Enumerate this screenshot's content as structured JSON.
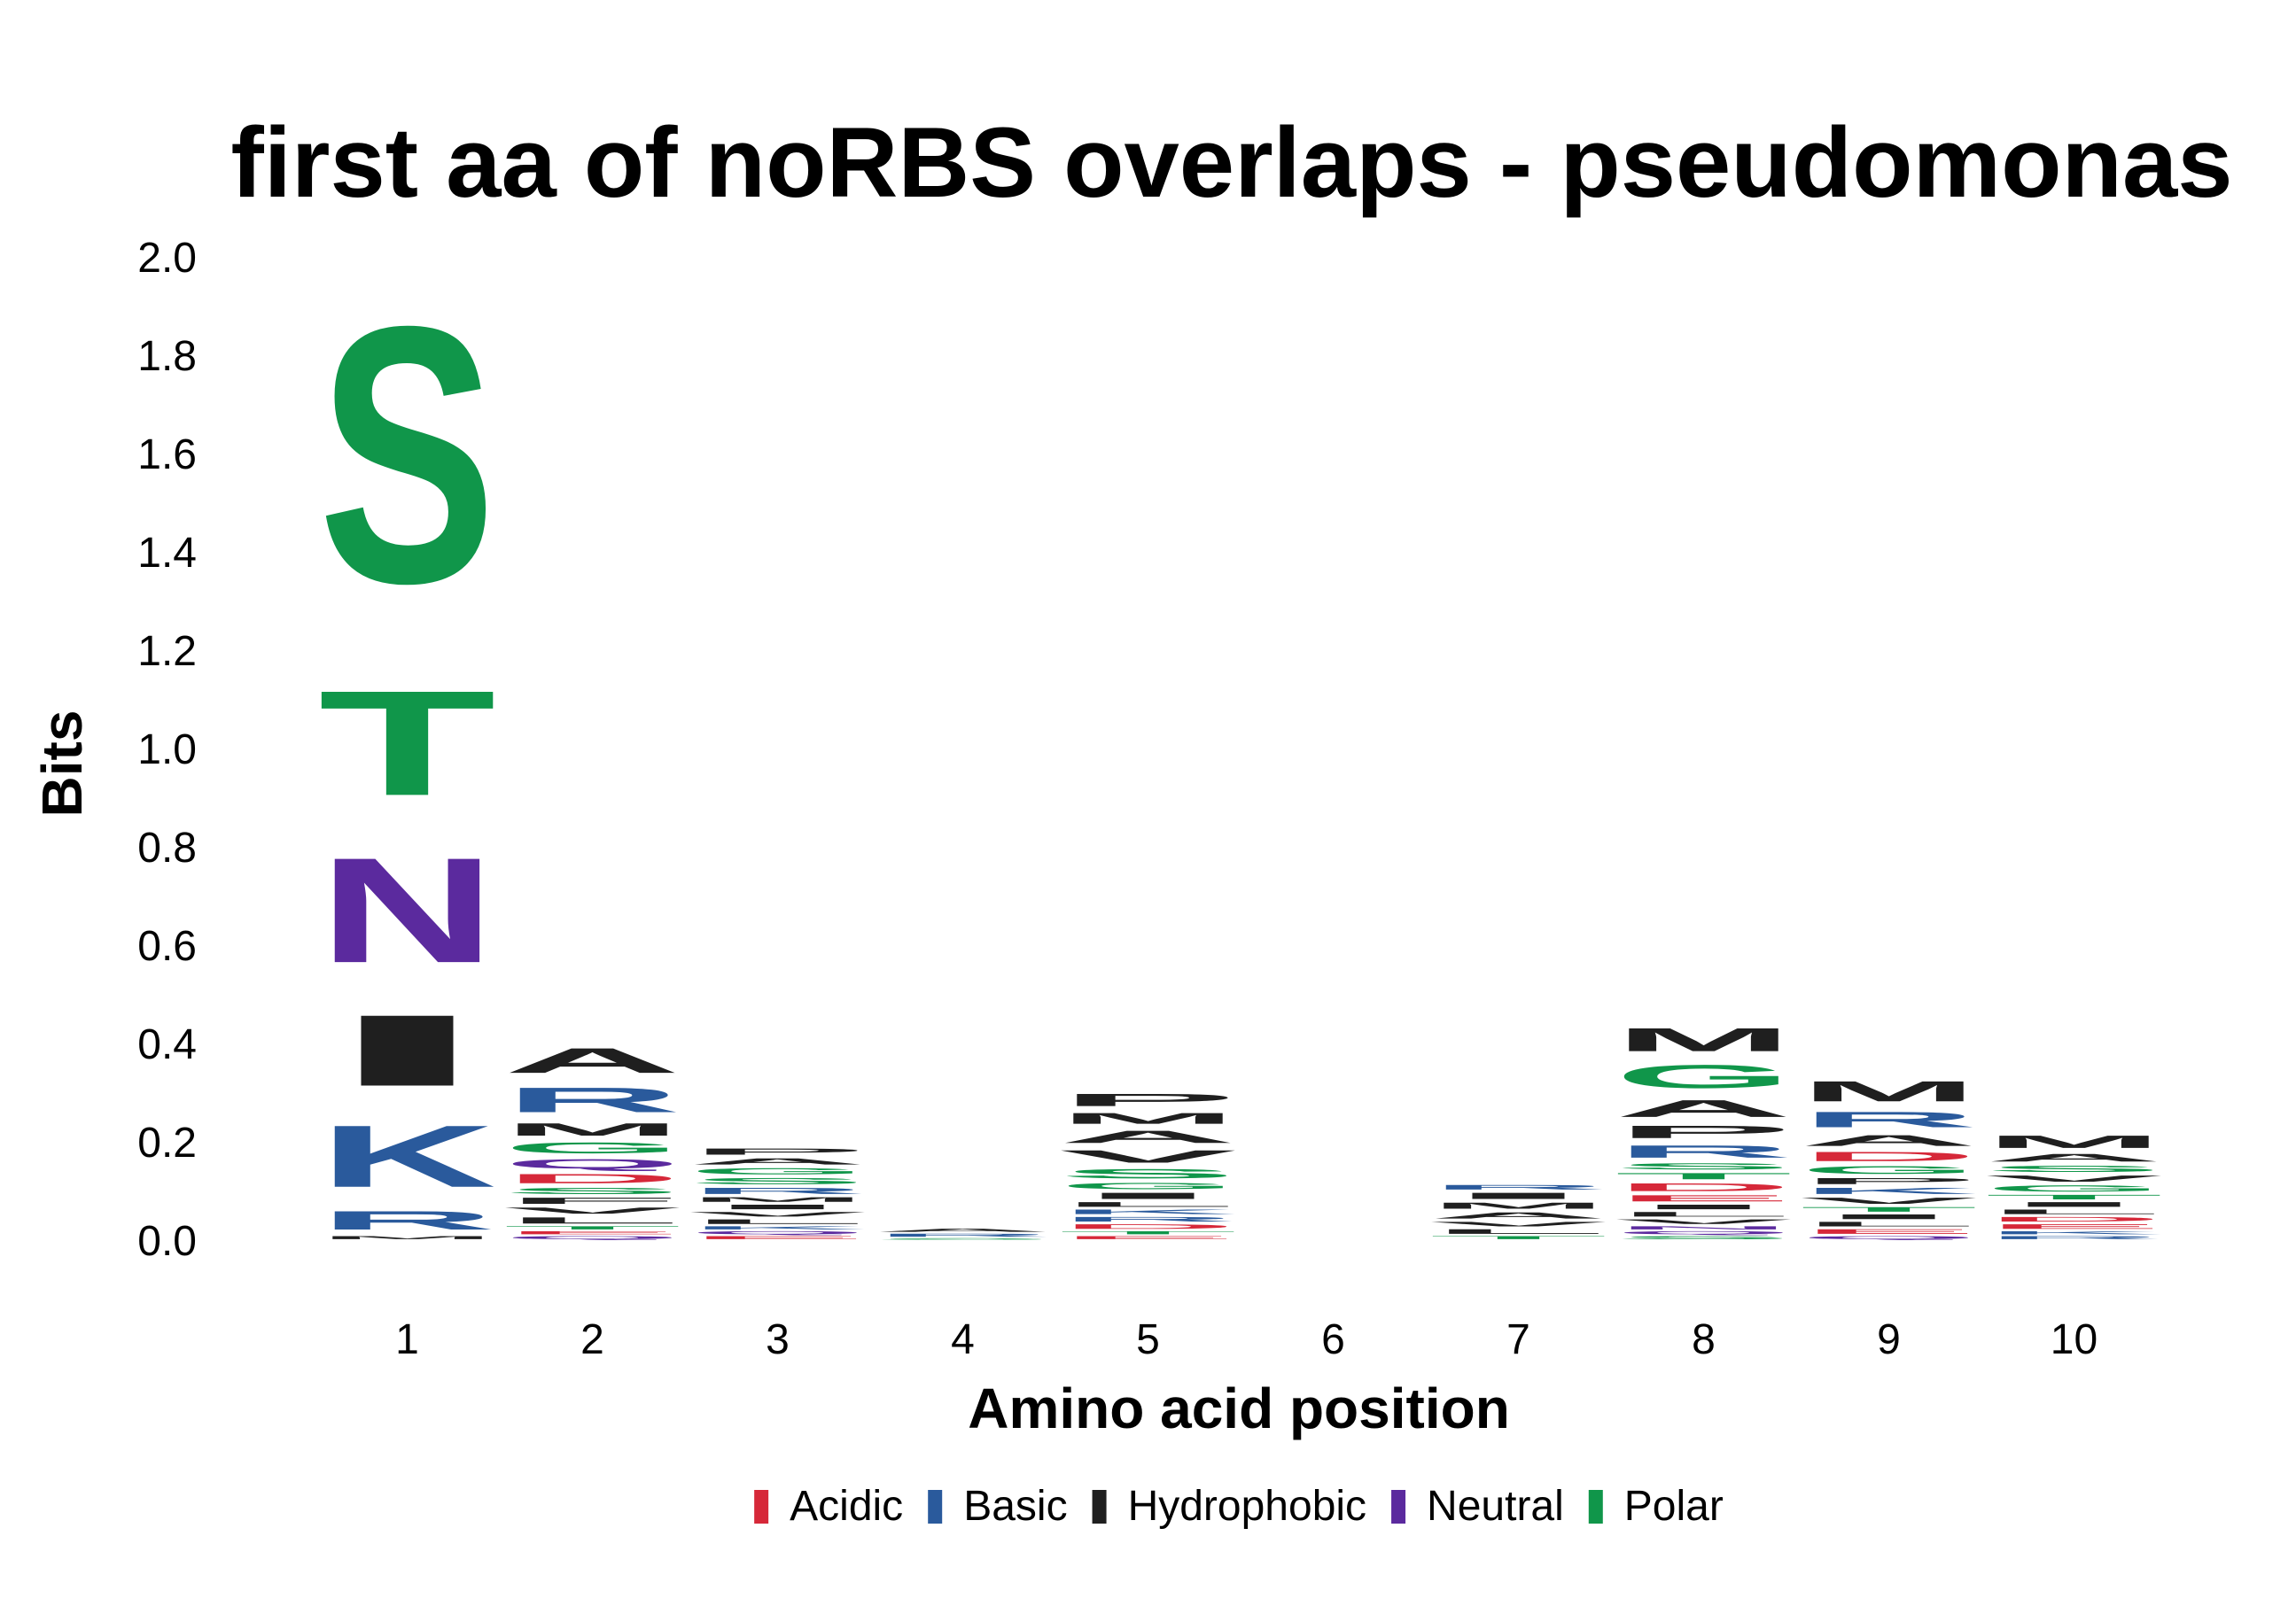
{
  "chart_data": {
    "type": "sequence-logo",
    "title": "first aa of noRBS overlaps - pseudomonas",
    "xlabel": "Amino acid position",
    "ylabel": "Bits",
    "ylim": [
      0,
      2.0
    ],
    "yticks": [
      "0.0",
      "0.2",
      "0.4",
      "0.6",
      "0.8",
      "1.0",
      "1.2",
      "1.4",
      "1.6",
      "1.8",
      "2.0"
    ],
    "xticks": [
      "1",
      "2",
      "3",
      "4",
      "5",
      "6",
      "7",
      "8",
      "9",
      "10"
    ],
    "colors": {
      "Acidic": "#d62839",
      "Basic": "#2a5a9c",
      "Hydrophobic": "#1f1f1f",
      "Neutral": "#5b2a9e",
      "Polar": "#10964a"
    },
    "legend": [
      {
        "label": "Acidic",
        "group": "Acidic"
      },
      {
        "label": "Basic",
        "group": "Basic"
      },
      {
        "label": "Hydrophobic",
        "group": "Hydrophobic"
      },
      {
        "label": "Neutral",
        "group": "Neutral"
      },
      {
        "label": "Polar",
        "group": "Polar"
      }
    ],
    "positions": [
      {
        "pos": "1",
        "letters": [
          {
            "aa": "M",
            "group": "Hydrophobic",
            "bits": 0.01
          },
          {
            "aa": "R",
            "group": "Basic",
            "bits": 0.06
          },
          {
            "aa": "K",
            "group": "Basic",
            "bits": 0.2
          },
          {
            "aa": "I",
            "group": "Hydrophobic",
            "bits": 0.23
          },
          {
            "aa": "N",
            "group": "Neutral",
            "bits": 0.34
          },
          {
            "aa": "T",
            "group": "Polar",
            "bits": 0.34
          },
          {
            "aa": "S",
            "group": "Polar",
            "bits": 0.83
          }
        ]
      },
      {
        "pos": "2",
        "letters": [
          {
            "aa": "Q",
            "group": "Neutral",
            "bits": 0.01
          },
          {
            "aa": "E",
            "group": "Acidic",
            "bits": 0.01
          },
          {
            "aa": "T",
            "group": "Polar",
            "bits": 0.01
          },
          {
            "aa": "L",
            "group": "Hydrophobic",
            "bits": 0.02
          },
          {
            "aa": "V",
            "group": "Hydrophobic",
            "bits": 0.02
          },
          {
            "aa": "F",
            "group": "Hydrophobic",
            "bits": 0.02
          },
          {
            "aa": "S",
            "group": "Polar",
            "bits": 0.02
          },
          {
            "aa": "D",
            "group": "Acidic",
            "bits": 0.03
          },
          {
            "aa": "Q",
            "group": "Neutral",
            "bits": 0.03
          },
          {
            "aa": "G",
            "group": "Polar",
            "bits": 0.035
          },
          {
            "aa": "M",
            "group": "Hydrophobic",
            "bits": 0.04
          },
          {
            "aa": "R",
            "group": "Basic",
            "bits": 0.08
          },
          {
            "aa": "A",
            "group": "Hydrophobic",
            "bits": 0.08
          }
        ]
      },
      {
        "pos": "3",
        "letters": [
          {
            "aa": "E",
            "group": "Acidic",
            "bits": 0.01
          },
          {
            "aa": "Q",
            "group": "Neutral",
            "bits": 0.01
          },
          {
            "aa": "K",
            "group": "Basic",
            "bits": 0.01
          },
          {
            "aa": "L",
            "group": "Hydrophobic",
            "bits": 0.015
          },
          {
            "aa": "V",
            "group": "Hydrophobic",
            "bits": 0.015
          },
          {
            "aa": "I",
            "group": "Hydrophobic",
            "bits": 0.015
          },
          {
            "aa": "M",
            "group": "Hydrophobic",
            "bits": 0.015
          },
          {
            "aa": "R",
            "group": "Basic",
            "bits": 0.02
          },
          {
            "aa": "S",
            "group": "Polar",
            "bits": 0.02
          },
          {
            "aa": "G",
            "group": "Polar",
            "bits": 0.02
          },
          {
            "aa": "A",
            "group": "Hydrophobic",
            "bits": 0.02
          },
          {
            "aa": "P",
            "group": "Hydrophobic",
            "bits": 0.02
          }
        ]
      },
      {
        "pos": "4",
        "letters": [
          {
            "aa": "S",
            "group": "Polar",
            "bits": 0.005
          },
          {
            "aa": "R",
            "group": "Basic",
            "bits": 0.01
          },
          {
            "aa": "A",
            "group": "Hydrophobic",
            "bits": 0.01
          }
        ]
      },
      {
        "pos": "5",
        "letters": [
          {
            "aa": "E",
            "group": "Acidic",
            "bits": 0.01
          },
          {
            "aa": "T",
            "group": "Polar",
            "bits": 0.01
          },
          {
            "aa": "D",
            "group": "Acidic",
            "bits": 0.015
          },
          {
            "aa": "R",
            "group": "Basic",
            "bits": 0.015
          },
          {
            "aa": "K",
            "group": "Basic",
            "bits": 0.015
          },
          {
            "aa": "L",
            "group": "Hydrophobic",
            "bits": 0.015
          },
          {
            "aa": "I",
            "group": "Hydrophobic",
            "bits": 0.02
          },
          {
            "aa": "G",
            "group": "Polar",
            "bits": 0.02
          },
          {
            "aa": "S",
            "group": "Polar",
            "bits": 0.03
          },
          {
            "aa": "V",
            "group": "Hydrophobic",
            "bits": 0.04
          },
          {
            "aa": "A",
            "group": "Hydrophobic",
            "bits": 0.04
          },
          {
            "aa": "M",
            "group": "Hydrophobic",
            "bits": 0.035
          },
          {
            "aa": "P",
            "group": "Hydrophobic",
            "bits": 0.04
          }
        ]
      },
      {
        "pos": "6",
        "letters": []
      },
      {
        "pos": "7",
        "letters": [
          {
            "aa": "T",
            "group": "Polar",
            "bits": 0.01
          },
          {
            "aa": "L",
            "group": "Hydrophobic",
            "bits": 0.015
          },
          {
            "aa": "V",
            "group": "Hydrophobic",
            "bits": 0.015
          },
          {
            "aa": "A",
            "group": "Hydrophobic",
            "bits": 0.02
          },
          {
            "aa": "M",
            "group": "Hydrophobic",
            "bits": 0.02
          },
          {
            "aa": "I",
            "group": "Hydrophobic",
            "bits": 0.02
          },
          {
            "aa": "R",
            "group": "Basic",
            "bits": 0.015
          }
        ]
      },
      {
        "pos": "8",
        "letters": [
          {
            "aa": "S",
            "group": "Polar",
            "bits": 0.01
          },
          {
            "aa": "Q",
            "group": "Neutral",
            "bits": 0.01
          },
          {
            "aa": "N",
            "group": "Neutral",
            "bits": 0.01
          },
          {
            "aa": "V",
            "group": "Hydrophobic",
            "bits": 0.015
          },
          {
            "aa": "L",
            "group": "Hydrophobic",
            "bits": 0.015
          },
          {
            "aa": "I",
            "group": "Hydrophobic",
            "bits": 0.015
          },
          {
            "aa": "E",
            "group": "Acidic",
            "bits": 0.02
          },
          {
            "aa": "D",
            "group": "Acidic",
            "bits": 0.025
          },
          {
            "aa": "T",
            "group": "Polar",
            "bits": 0.02
          },
          {
            "aa": "S",
            "group": "Polar",
            "bits": 0.02
          },
          {
            "aa": "R",
            "group": "Basic",
            "bits": 0.04
          },
          {
            "aa": "P",
            "group": "Hydrophobic",
            "bits": 0.04
          },
          {
            "aa": "A",
            "group": "Hydrophobic",
            "bits": 0.055
          },
          {
            "aa": "G",
            "group": "Polar",
            "bits": 0.075
          },
          {
            "aa": "M",
            "group": "Hydrophobic",
            "bits": 0.075
          }
        ]
      },
      {
        "pos": "9",
        "letters": [
          {
            "aa": "Q",
            "group": "Neutral",
            "bits": 0.01
          },
          {
            "aa": "E",
            "group": "Acidic",
            "bits": 0.015
          },
          {
            "aa": "L",
            "group": "Hydrophobic",
            "bits": 0.015
          },
          {
            "aa": "I",
            "group": "Hydrophobic",
            "bits": 0.015
          },
          {
            "aa": "T",
            "group": "Polar",
            "bits": 0.015
          },
          {
            "aa": "V",
            "group": "Hydrophobic",
            "bits": 0.02
          },
          {
            "aa": "K",
            "group": "Basic",
            "bits": 0.02
          },
          {
            "aa": "P",
            "group": "Hydrophobic",
            "bits": 0.02
          },
          {
            "aa": "G",
            "group": "Polar",
            "bits": 0.025
          },
          {
            "aa": "D",
            "group": "Acidic",
            "bits": 0.03
          },
          {
            "aa": "A",
            "group": "Hydrophobic",
            "bits": 0.035
          },
          {
            "aa": "R",
            "group": "Basic",
            "bits": 0.05
          },
          {
            "aa": "M",
            "group": "Hydrophobic",
            "bits": 0.065
          }
        ]
      },
      {
        "pos": "10",
        "letters": [
          {
            "aa": "R",
            "group": "Basic",
            "bits": 0.01
          },
          {
            "aa": "K",
            "group": "Basic",
            "bits": 0.01
          },
          {
            "aa": "E",
            "group": "Acidic",
            "bits": 0.015
          },
          {
            "aa": "D",
            "group": "Acidic",
            "bits": 0.015
          },
          {
            "aa": "L",
            "group": "Hydrophobic",
            "bits": 0.015
          },
          {
            "aa": "I",
            "group": "Hydrophobic",
            "bits": 0.015
          },
          {
            "aa": "T",
            "group": "Polar",
            "bits": 0.015
          },
          {
            "aa": "G",
            "group": "Polar",
            "bits": 0.02
          },
          {
            "aa": "V",
            "group": "Hydrophobic",
            "bits": 0.02
          },
          {
            "aa": "S",
            "group": "Polar",
            "bits": 0.02
          },
          {
            "aa": "A",
            "group": "Hydrophobic",
            "bits": 0.025
          },
          {
            "aa": "M",
            "group": "Hydrophobic",
            "bits": 0.04
          }
        ]
      }
    ]
  }
}
